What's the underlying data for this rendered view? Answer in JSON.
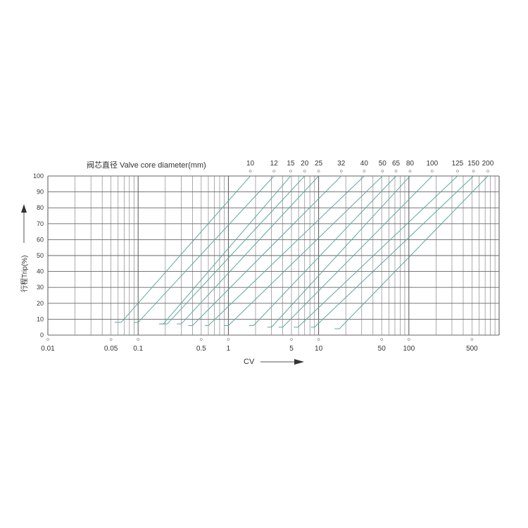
{
  "chart_data": {
    "type": "line",
    "title": "阀芯直径 Valve core diameter(mm)",
    "xlabel": "CV",
    "ylabel": "行程Trip(%)",
    "xscale": "log",
    "xlim": [
      0.01,
      1000
    ],
    "ylim": [
      0,
      100
    ],
    "grid": true,
    "line_color": "#5aa8a0",
    "xticks": [
      "0.01",
      "0.05",
      "0.1",
      "0.5",
      "1",
      "5",
      "10",
      "50",
      "100",
      "500"
    ],
    "xtick_values": [
      0.01,
      0.05,
      0.1,
      0.5,
      1,
      5,
      10,
      50,
      100,
      500
    ],
    "yticks": [
      "0",
      "10",
      "20",
      "30",
      "40",
      "50",
      "60",
      "70",
      "80",
      "90",
      "100"
    ],
    "series": [
      {
        "name": "10",
        "x": [
          0.055,
          0.065,
          1.75
        ],
        "y": [
          8,
          8,
          100
        ]
      },
      {
        "name": "12",
        "x": [
          0.09,
          0.1,
          3.2
        ],
        "y": [
          8,
          8,
          100
        ]
      },
      {
        "name": "15",
        "x": [
          0.17,
          0.19,
          4.9
        ],
        "y": [
          7,
          7,
          100
        ]
      },
      {
        "name": "20",
        "x": [
          0.18,
          0.21,
          7.0
        ],
        "y": [
          7,
          7,
          100
        ]
      },
      {
        "name": "25",
        "x": [
          0.27,
          0.3,
          10
        ],
        "y": [
          7,
          7,
          100
        ]
      },
      {
        "name": "32",
        "x": [
          0.36,
          0.4,
          17.8
        ],
        "y": [
          6,
          6,
          100
        ]
      },
      {
        "name": "40",
        "x": [
          0.55,
          0.6,
          32
        ],
        "y": [
          6,
          6,
          100
        ]
      },
      {
        "name": "50",
        "x": [
          0.9,
          1.0,
          51
        ],
        "y": [
          6,
          6,
          100
        ]
      },
      {
        "name": "65",
        "x": [
          1.7,
          1.9,
          72
        ],
        "y": [
          6,
          6,
          100
        ]
      },
      {
        "name": "80",
        "x": [
          2.7,
          3.0,
          103
        ],
        "y": [
          5,
          5,
          100
        ]
      },
      {
        "name": "100",
        "x": [
          3.6,
          4.0,
          181
        ],
        "y": [
          5,
          5,
          100
        ]
      },
      {
        "name": "125",
        "x": [
          5.3,
          5.9,
          346
        ],
        "y": [
          5,
          5,
          100
        ]
      },
      {
        "name": "150",
        "x": [
          8.2,
          9.0,
          520
        ],
        "y": [
          5,
          5,
          100
        ]
      },
      {
        "name": "200",
        "x": [
          15,
          17,
          750
        ],
        "y": [
          4,
          4,
          100
        ]
      }
    ]
  }
}
